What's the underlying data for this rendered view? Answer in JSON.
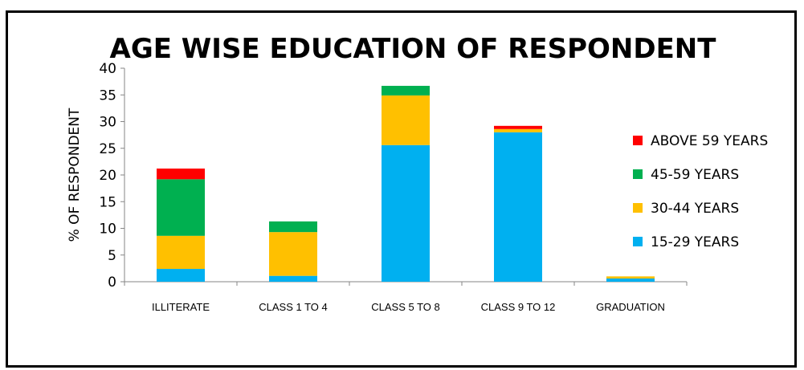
{
  "chart_data": {
    "type": "bar",
    "stacked": true,
    "title": "AGE WISE EDUCATION OF RESPONDENT",
    "xlabel": "",
    "ylabel": "% OF RESPONDENT",
    "ylim": [
      0,
      40
    ],
    "yticks": [
      "0",
      "5",
      "10",
      "15",
      "20",
      "25",
      "30",
      "35",
      "40"
    ],
    "categories": [
      "ILLITERATE",
      "CLASS 1 TO 4",
      "CLASS 5 TO 8",
      "CLASS 9 TO 12",
      "GRADUATION"
    ],
    "series": [
      {
        "name": "15-29 YEARS",
        "color": "#00B0F0",
        "values": [
          2.4,
          1.1,
          25.6,
          28.0,
          0.6
        ]
      },
      {
        "name": "30-44 YEARS",
        "color": "#FFC000",
        "values": [
          6.2,
          8.2,
          9.3,
          0.6,
          0.4
        ]
      },
      {
        "name": "45-59 YEARS",
        "color": "#00B050",
        "values": [
          10.6,
          2.0,
          1.8,
          0.0,
          0.0
        ]
      },
      {
        "name": "ABOVE 59 YEARS",
        "color": "#FF0000",
        "values": [
          2.0,
          0.0,
          0.0,
          0.6,
          0.0
        ]
      }
    ],
    "legend_position": "right",
    "grid": false
  }
}
